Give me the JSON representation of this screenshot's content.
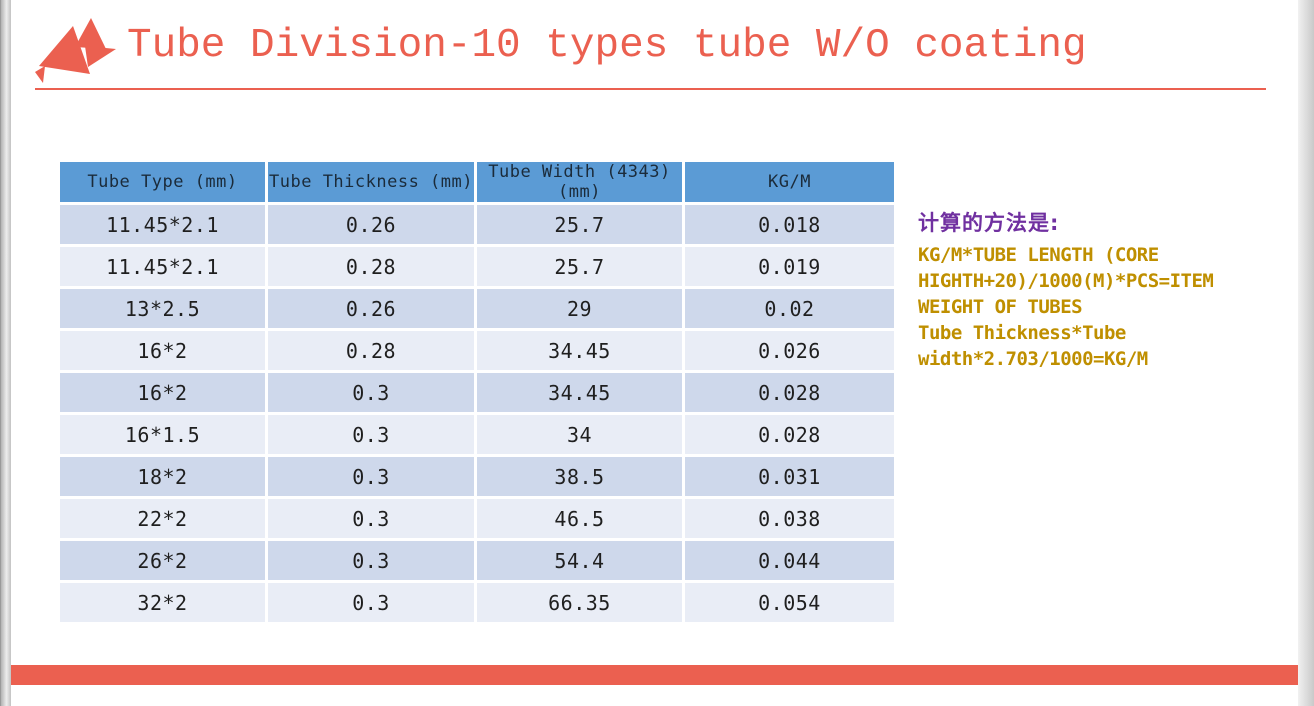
{
  "slide": {
    "title": "Tube Division-10 types tube W/O coating",
    "accent_color": "#EB6050"
  },
  "logo": {
    "name": "red-triangles-logo",
    "color": "#EB6050"
  },
  "table": {
    "header_bg": "#5B9BD5",
    "header_text_color": "#1B2B3A",
    "band_dark": "#CED8EB",
    "band_light": "#E9EDF6",
    "headers": [
      "Tube Type (mm)",
      "Tube Thickness (mm)",
      "Tube Width (4343) (mm)",
      "KG/M"
    ],
    "rows": [
      [
        "11.45*2.1",
        "0.26",
        "25.7",
        "0.018"
      ],
      [
        "11.45*2.1",
        "0.28",
        "25.7",
        "0.019"
      ],
      [
        "13*2.5",
        "0.26",
        "29",
        "0.02"
      ],
      [
        "16*2",
        "0.28",
        "34.45",
        "0.026"
      ],
      [
        "16*2",
        "0.3",
        "34.45",
        "0.028"
      ],
      [
        "16*1.5",
        "0.3",
        "34",
        "0.028"
      ],
      [
        "18*2",
        "0.3",
        "38.5",
        "0.031"
      ],
      [
        "22*2",
        "0.3",
        "46.5",
        "0.038"
      ],
      [
        "26*2",
        "0.3",
        "54.4",
        "0.044"
      ],
      [
        "32*2",
        "0.3",
        "66.35",
        "0.054"
      ]
    ]
  },
  "note": {
    "heading": "计算的方法是:",
    "heading_color": "#7030A0",
    "text_color": "#BF8F00",
    "lines": [
      "KG/M*TUBE LENGTH (CORE",
      "HIGHTH+20)/1000(M)*PCS=ITEM",
      "WEIGHT OF TUBES",
      "Tube Thickness*Tube",
      "width*2.703/1000=KG/M"
    ]
  }
}
